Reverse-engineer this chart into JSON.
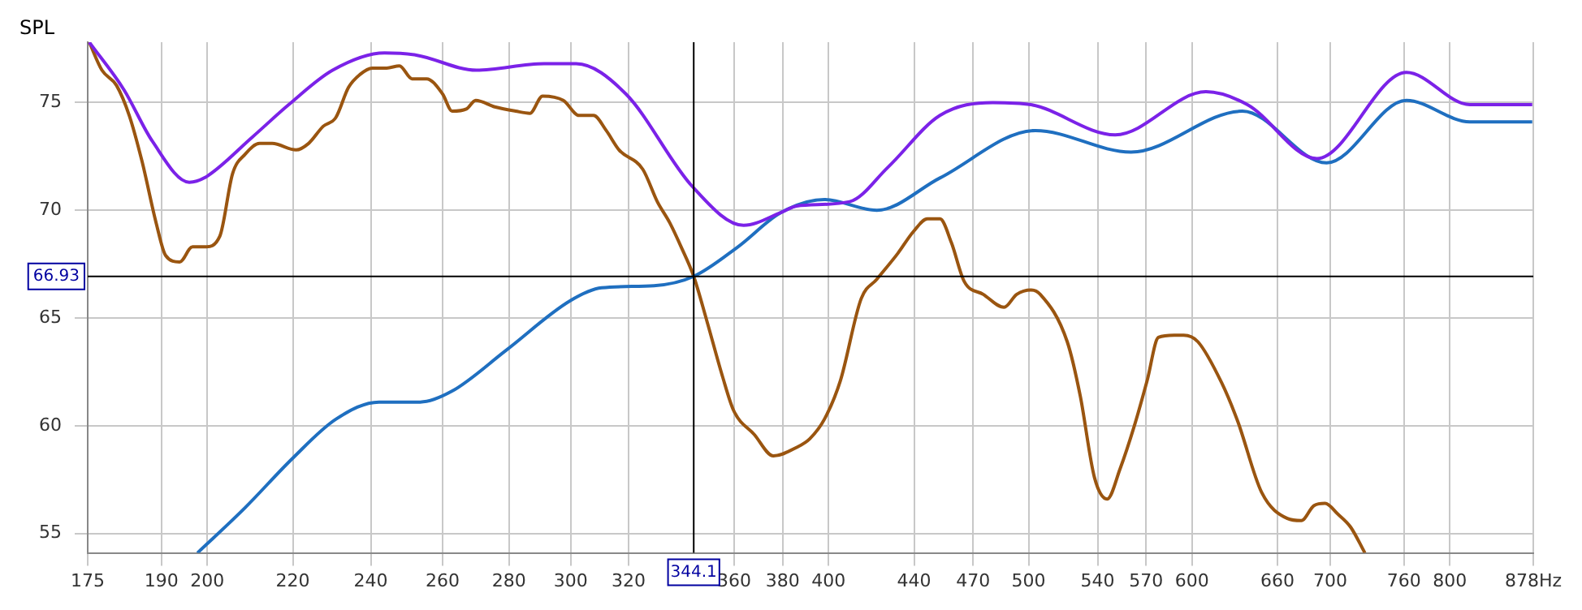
{
  "chart_data": {
    "type": "line",
    "ylabel": "SPL",
    "xlim": [
      175,
      878
    ],
    "ylim": [
      54.1,
      77.8
    ],
    "log": "x",
    "grid": true,
    "legend": false,
    "marker": "none",
    "line_style": "solid",
    "xticks": [
      175,
      190,
      200,
      220,
      240,
      260,
      280,
      300,
      320,
      360,
      380,
      400,
      440,
      470,
      500,
      540,
      570,
      600,
      660,
      700,
      760,
      800,
      {
        "value": 878,
        "label": "878Hz"
      }
    ],
    "yticks": [
      55,
      60,
      65,
      70,
      75
    ],
    "ref_lines": [
      {
        "axis": "x",
        "value": 344.1,
        "label": "344.1",
        "color": "#000000"
      },
      {
        "axis": "y",
        "value": 66.93,
        "label": "66.93",
        "color": "#000000"
      }
    ],
    "series": [
      {
        "color": "#7b22e8",
        "x": [
          175.3,
          182.2,
          188.1,
          196.0,
          199.3,
          210.3,
          219.0,
          230.0,
          243.7,
          252.5,
          270.0,
          291.2,
          301.8,
          319.0,
          343.6,
          363.8,
          379.4,
          386.0,
          409.5,
          427.4,
          452.9,
          480.4,
          501.3,
          550.7,
          609.4,
          638.2,
          689.7,
          762.1,
          818,
          877
        ],
        "values": [
          77.8,
          75.6,
          73.2,
          71.3,
          71.5,
          73.4,
          74.9,
          76.5,
          77.3,
          77.2,
          76.5,
          76.8,
          76.8,
          75.4,
          71.1,
          69.3,
          69.9,
          70.2,
          70.4,
          72.0,
          74.4,
          75.0,
          74.9,
          73.5,
          75.5,
          74.9,
          72.4,
          76.4,
          74.9,
          74.9
        ]
      },
      {
        "color": "#1f6fc0",
        "x": [
          197.8,
          208.6,
          220,
          230.8,
          242.2,
          253.6,
          262.7,
          279.1,
          299.8,
          310.5,
          329.2,
          344.1,
          361.5,
          379.4,
          398.1,
          422.1,
          452.9,
          503.8,
          560.5,
          634.7,
          697.2,
          762.1,
          818,
          877
        ],
        "values": [
          54.1,
          56.2,
          58.5,
          60.3,
          61.1,
          61.1,
          61.6,
          63.5,
          65.8,
          66.4,
          66.5,
          66.93,
          68.3,
          69.9,
          70.5,
          70.0,
          71.5,
          73.7,
          72.7,
          74.6,
          72.2,
          75.1,
          74.1,
          74.1
        ]
      },
      {
        "color": "#9a5510",
        "x": [
          175.3,
          177.8,
          180.7,
          183.3,
          185.9,
          188.9,
          190.9,
          193.9,
          196.7,
          199.5,
          202.8,
          205.7,
          208.6,
          212.0,
          215.0,
          220.8,
          223.9,
          227.6,
          230.8,
          234.1,
          237.1,
          240.4,
          244.3,
          247.8,
          251.3,
          255.4,
          260.0,
          262.8,
          267.0,
          269.8,
          275.6,
          282.1,
          286.6,
          290.7,
          297.5,
          302.8,
          307.7,
          312.1,
          316.6,
          325.1,
          330.4,
          335.1,
          339.3,
          344.1,
          349.1,
          355.3,
          359.8,
          368.1,
          376.1,
          386.0,
          391.7,
          398.1,
          405.3,
          414.8,
          422.1,
          432.1,
          439.6,
          446.6,
          452.9,
          458.7,
          465.3,
          475.3,
          486.5,
          493.4,
          501.3,
          506.5,
          522.0,
          529.6,
          538.1,
          545.8,
          553.7,
          562.6,
          570.7,
          577.9,
          588.2,
          594.4,
          603.9,
          620.1,
          631.4,
          648.5,
          667.3,
          677.8,
          687.5,
          696.0,
          706.0,
          716.1,
          727.6
        ],
        "values": [
          77.8,
          76.5,
          75.8,
          74.4,
          72.3,
          69.4,
          67.9,
          67.6,
          68.3,
          68.3,
          68.8,
          71.7,
          72.6,
          73.1,
          73.1,
          72.8,
          73.1,
          73.9,
          74.3,
          75.7,
          76.3,
          76.6,
          76.6,
          76.7,
          76.1,
          76.1,
          75.4,
          74.6,
          74.7,
          75.1,
          74.8,
          74.6,
          74.5,
          75.3,
          75.1,
          74.4,
          74.4,
          73.7,
          72.8,
          71.9,
          70.4,
          69.4,
          68.3,
          66.93,
          64.9,
          62.3,
          60.7,
          59.6,
          58.6,
          59.0,
          59.4,
          60.3,
          62.1,
          65.9,
          66.8,
          68.0,
          69.0,
          69.6,
          69.6,
          68.5,
          66.7,
          66.1,
          65.5,
          66.1,
          66.3,
          66.1,
          63.9,
          61.4,
          57.6,
          56.6,
          58.0,
          60.0,
          62.1,
          64.1,
          64.2,
          64.2,
          63.9,
          62.0,
          60.2,
          56.9,
          55.7,
          55.6,
          56.3,
          56.4,
          55.9,
          55.3,
          54.1
        ]
      }
    ]
  }
}
